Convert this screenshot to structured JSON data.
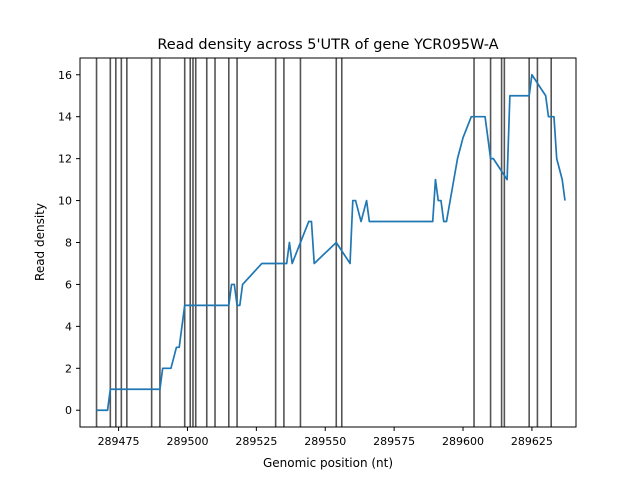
{
  "chart_data": {
    "type": "line",
    "title": "Read density across 5'UTR of gene YCR095W-A",
    "xlabel": "Genomic position (nt)",
    "ylabel": "Read density",
    "xlim": [
      289461,
      289641
    ],
    "ylim": [
      -0.8,
      16.8
    ],
    "xticks": [
      289475,
      289500,
      289525,
      289550,
      289575,
      289600,
      289625
    ],
    "yticks": [
      0,
      2,
      4,
      6,
      8,
      10,
      12,
      14,
      16
    ],
    "grid": false,
    "line_color": "#1f77b4",
    "vline_color": "#555555",
    "vlines": [
      289467,
      289472,
      289474,
      289476,
      289478,
      289487,
      289490,
      289499,
      289501,
      289502,
      289503,
      289507,
      289510,
      289515,
      289518,
      289532,
      289535,
      289541,
      289554,
      289556,
      289604,
      289610,
      289614,
      289615,
      289624,
      289627,
      289632
    ],
    "series": [
      {
        "x": [
          289467,
          289470,
          289471,
          289472,
          289489,
          289490,
          289491,
          289493,
          289494,
          289496,
          289497,
          289499,
          289515,
          289516,
          289517,
          289518,
          289519,
          289520,
          289527,
          289528,
          289535,
          289536,
          289537,
          289538,
          289544,
          289545,
          289546,
          289554,
          289559,
          289560,
          289561,
          289563,
          289565,
          289566,
          289589,
          289590,
          289591,
          289592,
          289593,
          289594,
          289598,
          289600,
          289603,
          289608,
          289610,
          289611,
          289616,
          289617,
          289624,
          289625,
          289630,
          289631,
          289633,
          289634,
          289636,
          289637
        ],
        "y": [
          0,
          0,
          0,
          1,
          1,
          1,
          2,
          2,
          2,
          3,
          3,
          5,
          5,
          6,
          6,
          5,
          5,
          6,
          7,
          7,
          7,
          7,
          8,
          7,
          9,
          9,
          7,
          8,
          7,
          10,
          10,
          9,
          10,
          9,
          9,
          11,
          10,
          10,
          9,
          9,
          12,
          13,
          14,
          14,
          12,
          12,
          11,
          15,
          15,
          16,
          15,
          14,
          14,
          12,
          11,
          10
        ]
      }
    ]
  }
}
